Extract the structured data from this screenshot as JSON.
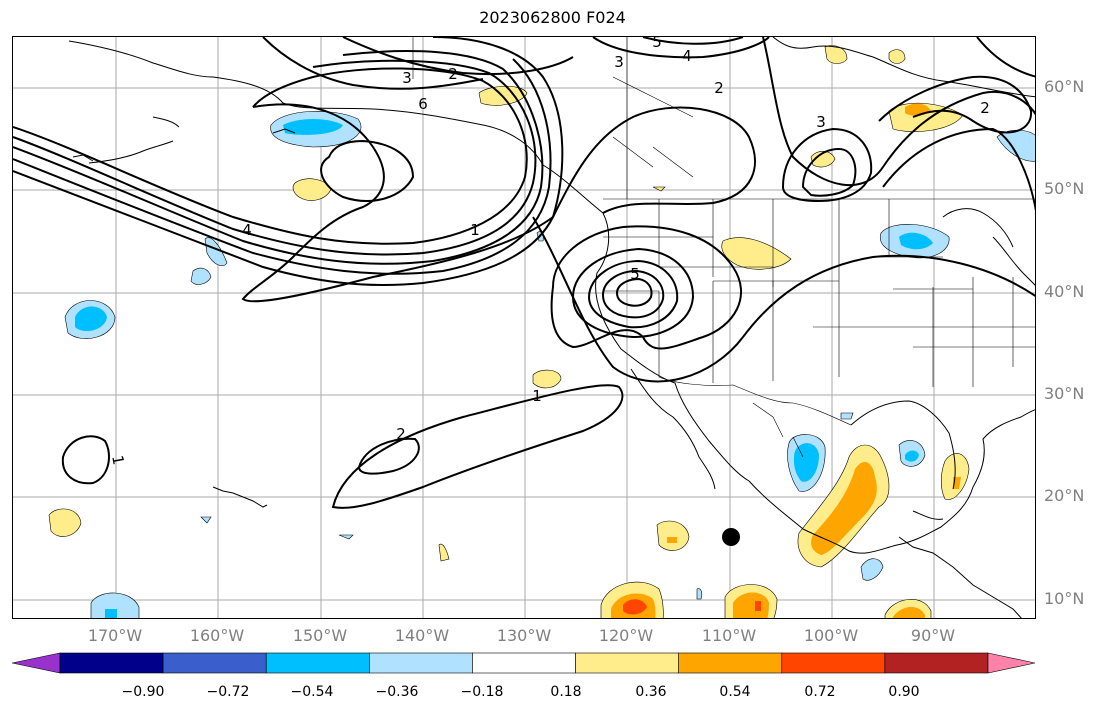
{
  "title": "2023062800 F024",
  "lat_labels": [
    "60°N",
    "50°N",
    "40°N",
    "30°N",
    "20°N",
    "10°N"
  ],
  "lon_labels": [
    "170°W",
    "160°W",
    "150°W",
    "140°W",
    "130°W",
    "120°W",
    "110°W",
    "100°W",
    "90°W"
  ],
  "contour_labels": [
    "1",
    "1",
    "1",
    "2",
    "2",
    "2",
    "2",
    "3",
    "3",
    "3",
    "4",
    "4",
    "5",
    "5",
    "6"
  ],
  "colorbar": {
    "ticks": [
      "−0.90",
      "−0.72",
      "−0.54",
      "−0.36",
      "−0.18",
      "0.18",
      "0.36",
      "0.54",
      "0.72",
      "0.90"
    ],
    "colors": [
      "#9932cc",
      "#00008b",
      "#3a5fcd",
      "#00bfff",
      "#b0e2ff",
      "#ffffff",
      "#ffec8b",
      "#ffa500",
      "#ff4500",
      "#b22222",
      "#ff82ab"
    ]
  },
  "colors": {
    "contour": "#000000",
    "grid": "#aaaaaa",
    "axis_label": "#808080"
  }
}
